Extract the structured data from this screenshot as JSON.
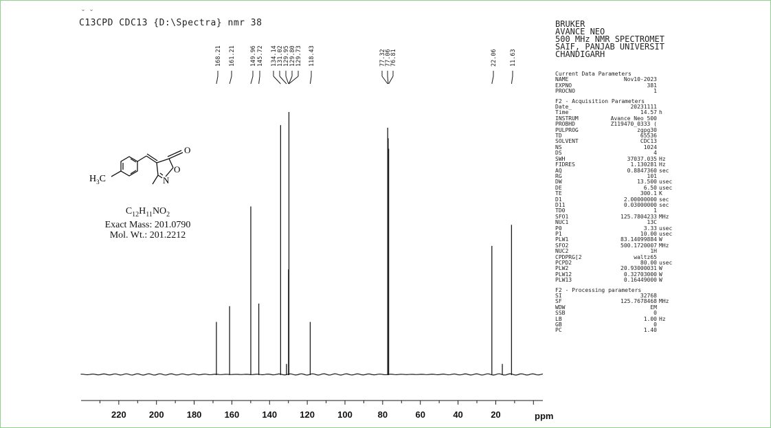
{
  "header": {
    "accent": "˘ ˘",
    "title": "C13CPD CDC13 {D:\\Spectra} nmr 38"
  },
  "instrument": {
    "lines": [
      "BRUKER",
      "AVANCE NEO",
      "500 MHz NMR SPECTROMET",
      "SAIF, PANJAB UNIVERSIT",
      "CHANDIGARH"
    ]
  },
  "parameters": [
    {
      "title": "Current Data Parameters",
      "rows": [
        {
          "k": "NAME",
          "v": "Nov10-2023",
          "u": ""
        },
        {
          "k": "EXPNO",
          "v": "381",
          "u": ""
        },
        {
          "k": "PROCNO",
          "v": "1",
          "u": ""
        }
      ]
    },
    {
      "title": "F2 - Acquisition Parameters",
      "rows": [
        {
          "k": "Date_",
          "v": "20231111",
          "u": ""
        },
        {
          "k": "Time",
          "v": "14.57",
          "u": "h"
        },
        {
          "k": "INSTRUM",
          "v": "Avance Neo 500",
          "u": ""
        },
        {
          "k": "PROBHD",
          "v": "Z119470_0333 (",
          "u": ""
        },
        {
          "k": "PULPROG",
          "v": "zgpg30",
          "u": ""
        },
        {
          "k": "TD",
          "v": "65536",
          "u": ""
        },
        {
          "k": "SOLVENT",
          "v": "CDC13",
          "u": ""
        },
        {
          "k": "NS",
          "v": "1024",
          "u": ""
        },
        {
          "k": "DS",
          "v": "4",
          "u": ""
        },
        {
          "k": "SWH",
          "v": "37037.035",
          "u": "Hz"
        },
        {
          "k": "FIDRES",
          "v": "1.130281",
          "u": "Hz"
        },
        {
          "k": "AQ",
          "v": "0.8847360",
          "u": "sec"
        },
        {
          "k": "RG",
          "v": "101",
          "u": ""
        },
        {
          "k": "DW",
          "v": "13.500",
          "u": "usec"
        },
        {
          "k": "DE",
          "v": "6.50",
          "u": "usec"
        },
        {
          "k": "TE",
          "v": "300.1",
          "u": "K"
        },
        {
          "k": "D1",
          "v": "2.00000000",
          "u": "sec"
        },
        {
          "k": "D11",
          "v": "0.03000000",
          "u": "sec"
        },
        {
          "k": "TD0",
          "v": "1",
          "u": ""
        },
        {
          "k": "SFO1",
          "v": "125.7804233",
          "u": "MHz"
        },
        {
          "k": "NUC1",
          "v": "13C",
          "u": ""
        },
        {
          "k": "P0",
          "v": "3.33",
          "u": "usec"
        },
        {
          "k": "P1",
          "v": "10.00",
          "u": "usec"
        },
        {
          "k": "PLW1",
          "v": "83.14099884",
          "u": "W"
        },
        {
          "k": "SFO2",
          "v": "500.1720007",
          "u": "MHz"
        },
        {
          "k": "NUC2",
          "v": "1H",
          "u": ""
        },
        {
          "k": "CPDPRG[2",
          "v": "waltz65",
          "u": ""
        },
        {
          "k": "PCPD2",
          "v": "80.00",
          "u": "usec"
        },
        {
          "k": "PLW2",
          "v": "20.93000031",
          "u": "W"
        },
        {
          "k": "PLW12",
          "v": "0.32703000",
          "u": "W"
        },
        {
          "k": "PLW13",
          "v": "0.16449000",
          "u": "W"
        }
      ]
    },
    {
      "title": "F2 - Processing parameters",
      "rows": [
        {
          "k": "SI",
          "v": "32768",
          "u": ""
        },
        {
          "k": "SF",
          "v": "125.7678468",
          "u": "MHz"
        },
        {
          "k": "WDW",
          "v": "EM",
          "u": ""
        },
        {
          "k": "SSB",
          "v": "0",
          "u": ""
        },
        {
          "k": "LB",
          "v": "1.00",
          "u": "Hz"
        },
        {
          "k": "GB",
          "v": "0",
          "u": ""
        },
        {
          "k": "PC",
          "v": "1.40",
          "u": ""
        }
      ]
    }
  ],
  "compound": {
    "ring_o": "O",
    "ring_o2": "O",
    "ring_n": "N",
    "methyl_main": "H",
    "methyl_sub": "3",
    "methyl_c": "C",
    "formula_parts": [
      {
        "text": "C",
        "sub": false
      },
      {
        "text": "12",
        "sub": true
      },
      {
        "text": "H",
        "sub": false
      },
      {
        "text": "11",
        "sub": true
      },
      {
        "text": "NO",
        "sub": false
      },
      {
        "text": "2",
        "sub": true
      }
    ],
    "exact_mass": "Exact Mass: 201.0790",
    "mol_wt": "Mol. Wt.: 201.2212"
  },
  "colors": {
    "line": "#1a1a1a",
    "frame": "#8fcf8f"
  },
  "chart_data": {
    "type": "line",
    "title": "C13CPD CDC13 {D:\\Spectra} nmr 38",
    "xlabel": "ppm",
    "xlim": [
      240,
      -5
    ],
    "x_reversed": true,
    "ylim": [
      0,
      1
    ],
    "x_ticks": [
      220,
      200,
      180,
      160,
      140,
      120,
      100,
      80,
      60,
      40,
      20
    ],
    "peak_labels": [
      "168.21",
      "161.21",
      "149.96",
      "145.72",
      "134.14",
      "131.02",
      "129.95",
      "129.80",
      "129.73",
      "118.43",
      "77.32",
      "77.06",
      "76.81",
      "22.06",
      "11.63"
    ],
    "peaks": [
      {
        "ppm": 168.21,
        "h": 0.2
      },
      {
        "ppm": 161.21,
        "h": 0.26
      },
      {
        "ppm": 149.96,
        "h": 0.64
      },
      {
        "ppm": 145.72,
        "h": 0.27
      },
      {
        "ppm": 134.14,
        "h": 0.95
      },
      {
        "ppm": 131.02,
        "h": 0.04
      },
      {
        "ppm": 129.95,
        "h": 0.4
      },
      {
        "ppm": 129.8,
        "h": 0.4
      },
      {
        "ppm": 129.73,
        "h": 1.0
      },
      {
        "ppm": 118.43,
        "h": 0.2
      },
      {
        "ppm": 77.32,
        "h": 0.94
      },
      {
        "ppm": 77.06,
        "h": 0.9
      },
      {
        "ppm": 76.81,
        "h": 0.86
      },
      {
        "ppm": 22.06,
        "h": 0.49
      },
      {
        "ppm": 16.5,
        "h": 0.04
      },
      {
        "ppm": 11.63,
        "h": 0.57
      }
    ]
  }
}
